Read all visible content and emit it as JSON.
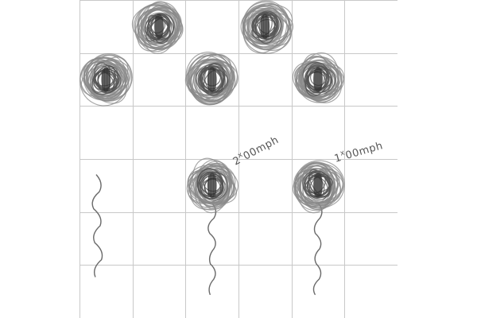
{
  "board": {
    "columns": 6,
    "rows": 6,
    "grid_color": "#c8c8c8",
    "background": "#ffffff"
  },
  "pieces": [
    {
      "col": 1,
      "row": 0,
      "kind": "scribble-blob",
      "has_tail": false
    },
    {
      "col": 3,
      "row": 0,
      "kind": "scribble-blob",
      "has_tail": false
    },
    {
      "col": 0,
      "row": 1,
      "kind": "scribble-blob",
      "has_tail": false
    },
    {
      "col": 2,
      "row": 1,
      "kind": "scribble-blob",
      "has_tail": false
    },
    {
      "col": 4,
      "row": 1,
      "kind": "scribble-blob",
      "has_tail": false
    },
    {
      "col": 2,
      "row": 3,
      "kind": "scribble-blob",
      "has_tail": true
    },
    {
      "col": 4,
      "row": 3,
      "kind": "scribble-blob",
      "has_tail": true
    }
  ],
  "loose_tail": {
    "col": 0,
    "row": 3
  },
  "labels": {
    "left": {
      "prefix": "2",
      "sup": "x",
      "suffix": "00mph"
    },
    "right": {
      "prefix": "1",
      "sup": "x",
      "suffix": "00mph"
    }
  },
  "colors": {
    "scribble_outer": "#8a8a8a",
    "scribble_inner": "#555555",
    "core": "#3a3a3a",
    "tail": "#6a6a6a",
    "annotation": "#555555"
  }
}
